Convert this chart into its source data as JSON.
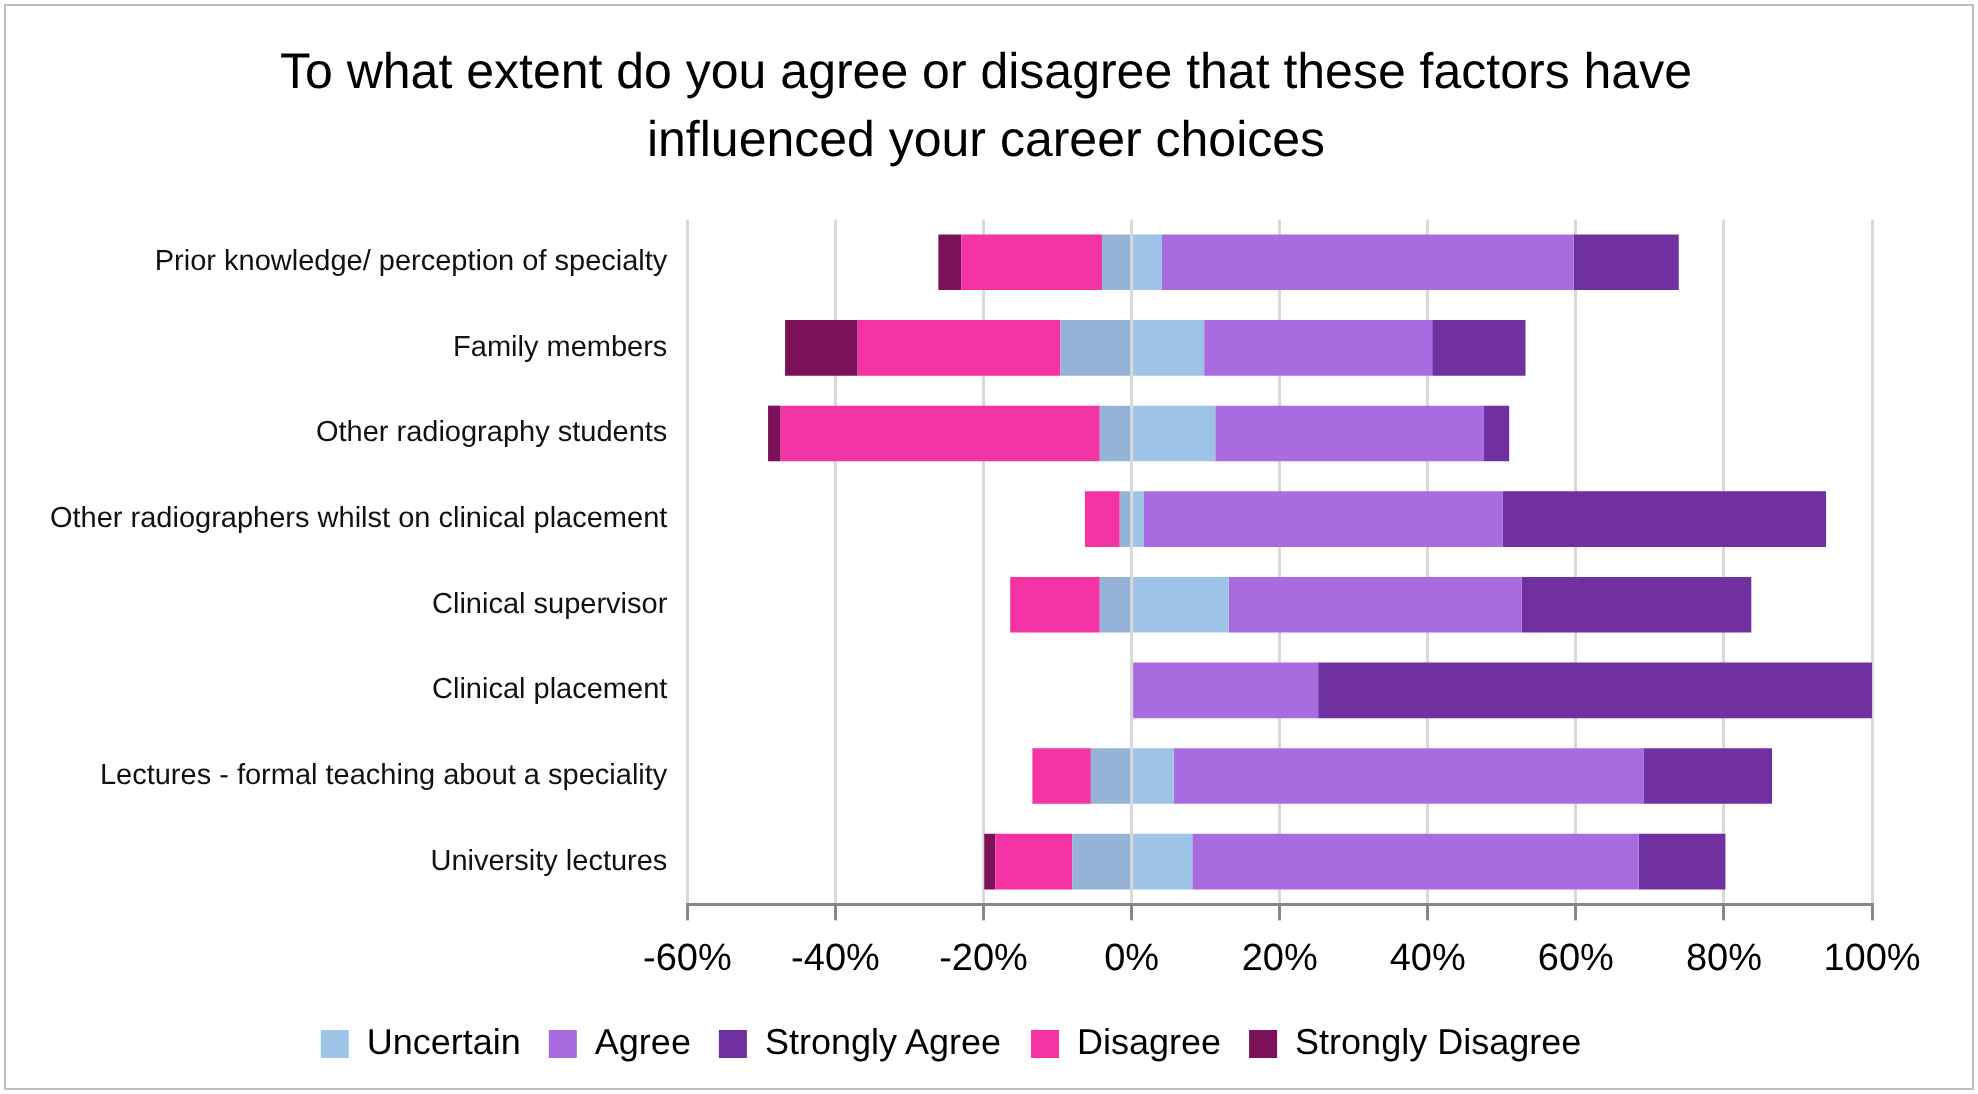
{
  "chart_data": {
    "type": "bar",
    "orientation": "horizontal",
    "stacked": true,
    "title": "To what extent do you agree or disagree that these factors have influenced your career choices",
    "categories": [
      "Prior knowledge/ perception of specialty",
      "Family members",
      "Other radiography students",
      "Other radiographers whilst on clinical placement",
      "Clinical supervisor",
      "Clinical placement",
      "Lectures - formal teaching about a speciality",
      "University lectures"
    ],
    "series": [
      {
        "name": "Uncertain",
        "color": "#9dc3e6",
        "values": [
          4.1,
          9.8,
          11.3,
          1.6,
          13.1,
          0,
          5.7,
          8.2
        ]
      },
      {
        "color": "#95b3d7",
        "values": [
          -4.0,
          -9.6,
          -4.3,
          -1.6,
          -4.3,
          0,
          -5.5,
          -8.0
        ]
      },
      {
        "name": "Agree",
        "color": "#a86ce0",
        "values": [
          55.6,
          30.8,
          36.3,
          48.5,
          39.6,
          25.2,
          63.5,
          60.3
        ]
      },
      {
        "name": "Strongly Agree",
        "color": "#7030a0",
        "values": [
          14.2,
          12.6,
          3.4,
          43.7,
          31.0,
          74.8,
          17.3,
          11.7
        ]
      },
      {
        "name": "Disagree",
        "color": "#f433a5",
        "values": [
          -19.0,
          -27.4,
          -43.1,
          -4.7,
          -12.1,
          0,
          -7.9,
          -10.4
        ]
      },
      {
        "name": "Strongly Disagree",
        "color": "#7b1259",
        "values": [
          -3.1,
          -9.8,
          -1.7,
          0,
          0,
          0,
          0,
          -1.5
        ]
      }
    ],
    "xlim": [
      -60,
      100
    ],
    "xticks": [
      {
        "value": -60,
        "label": "-60%"
      },
      {
        "value": -40,
        "label": "-40%"
      },
      {
        "value": -20,
        "label": "-20%"
      },
      {
        "value": 0,
        "label": "0%"
      },
      {
        "value": 20,
        "label": "20%"
      },
      {
        "value": 40,
        "label": "40%"
      },
      {
        "value": 60,
        "label": "60%"
      },
      {
        "value": 80,
        "label": "80%"
      },
      {
        "value": 100,
        "label": "100%"
      }
    ],
    "grid": "x",
    "legend": "bottom"
  }
}
